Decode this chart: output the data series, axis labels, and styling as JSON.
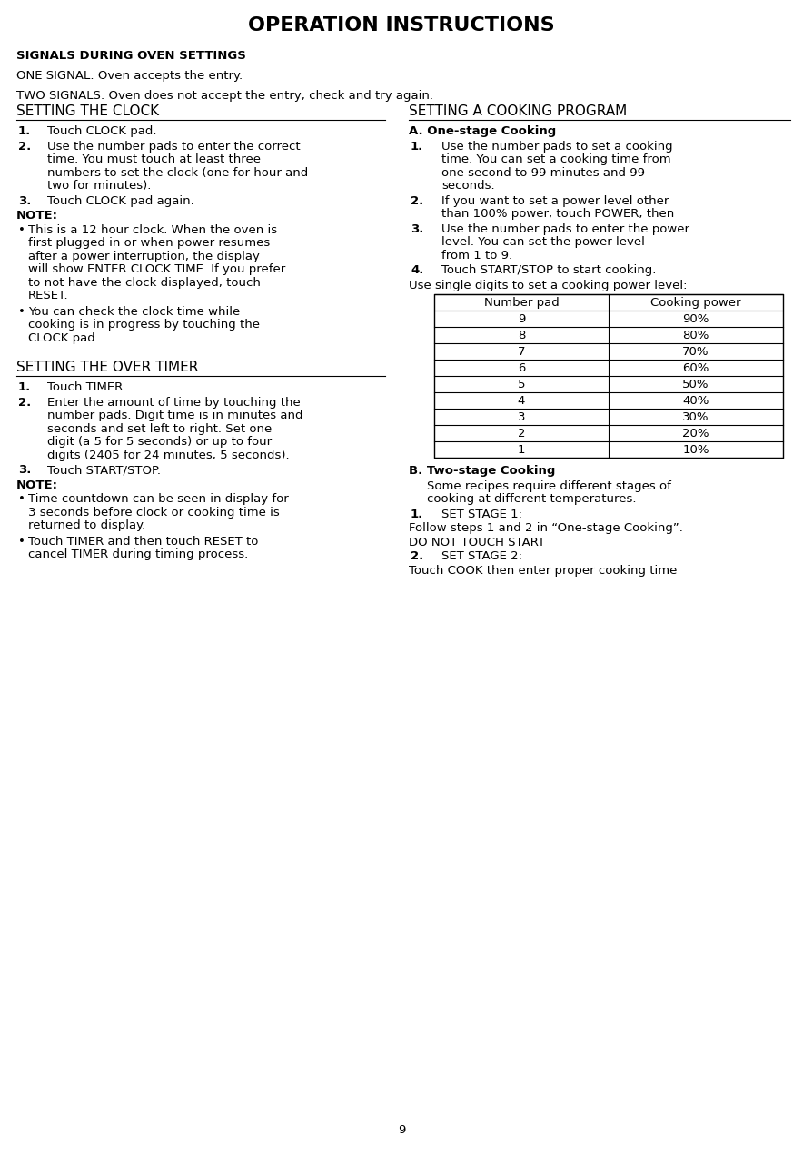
{
  "title": "OPERATION INSTRUCTIONS",
  "bg_color": "#ffffff",
  "text_color": "#000000",
  "page_number": "9",
  "signals_heading": "SIGNALS DURING OVEN SETTINGS",
  "signals_line1": "ONE SIGNAL: Oven accepts the entry.",
  "signals_line2": "TWO SIGNALS: Oven does not accept the entry, check and try again.",
  "left_section_heading": "SETTING THE CLOCK",
  "left_section_content": [
    {
      "type": "numbered",
      "num": "1.",
      "text": "Touch CLOCK pad."
    },
    {
      "type": "numbered",
      "num": "2.",
      "text": "Use the number pads to enter the correct time. You must touch at least three numbers to set the clock (one for hour and two for minutes)."
    },
    {
      "type": "numbered",
      "num": "3.",
      "text": "Touch CLOCK pad again."
    },
    {
      "type": "plain",
      "text": "NOTE:"
    },
    {
      "type": "bullet",
      "text": "This is a 12 hour clock. When the oven is first plugged in or when power resumes after a power interruption, the display will show ENTER CLOCK TIME. If you prefer to not have the clock displayed, touch RESET."
    },
    {
      "type": "bullet",
      "text": "You can check the clock time while cooking is in progress by touching the CLOCK pad."
    }
  ],
  "left_section2_heading": "SETTING THE OVER TIMER",
  "left_section2_content": [
    {
      "type": "numbered",
      "num": "1.",
      "text": "Touch TIMER."
    },
    {
      "type": "numbered",
      "num": "2.",
      "text": "Enter the amount of time by touching the number pads. Digit time is in minutes and seconds and set left to right. Set one digit (a 5 for 5 seconds) or up to four digits (2405 for 24 minutes, 5 seconds)."
    },
    {
      "type": "numbered",
      "num": "3.",
      "text": "Touch START/STOP."
    },
    {
      "type": "plain",
      "text": "NOTE:"
    },
    {
      "type": "bullet",
      "text": "Time countdown can be seen in display for 3 seconds before clock or cooking time is returned to display."
    },
    {
      "type": "bullet",
      "text": "Touch TIMER and then touch RESET to cancel TIMER during timing process."
    }
  ],
  "right_section_heading": "SETTING A COOKING PROGRAM",
  "right_section_A_heading": "A. One-stage Cooking",
  "right_section_A_content": [
    {
      "type": "numbered",
      "num": "1.",
      "text": "Use the number pads to set a cooking time. You can set a cooking time from one second to 99 minutes and 99 seconds."
    },
    {
      "type": "numbered",
      "num": "2.",
      "text": "If you want to set a power level other than 100% power, touch POWER, then"
    },
    {
      "type": "numbered",
      "num": "3.",
      "text": "Use the number pads to enter the power level. You can set the power level from 1 to 9."
    },
    {
      "type": "numbered",
      "num": "4.",
      "text": "Touch START/STOP to start cooking."
    },
    {
      "type": "plain",
      "text": "Use single digits to set a cooking power level:"
    }
  ],
  "table_headers": [
    "Number pad",
    "Cooking power"
  ],
  "table_rows": [
    [
      "9",
      "90%"
    ],
    [
      "8",
      "80%"
    ],
    [
      "7",
      "70%"
    ],
    [
      "6",
      "60%"
    ],
    [
      "5",
      "50%"
    ],
    [
      "4",
      "40%"
    ],
    [
      "3",
      "30%"
    ],
    [
      "2",
      "20%"
    ],
    [
      "1",
      "10%"
    ]
  ],
  "right_section_B_heading": "B. Two-stage Cooking",
  "right_section_B_content": [
    {
      "type": "indent",
      "text": "Some recipes require different stages of cooking at different temperatures."
    },
    {
      "type": "numbered_plain",
      "num": "1.",
      "text": "SET STAGE 1:"
    },
    {
      "type": "plain_nonum",
      "text": "Follow steps 1 and 2 in “One-stage Cooking”."
    },
    {
      "type": "plain_nonum",
      "text": "DO NOT TOUCH START"
    },
    {
      "type": "numbered_plain",
      "num": "2.",
      "text": "SET STAGE 2:"
    },
    {
      "type": "plain_nonum",
      "text": "Touch COOK then enter proper cooking time"
    }
  ]
}
